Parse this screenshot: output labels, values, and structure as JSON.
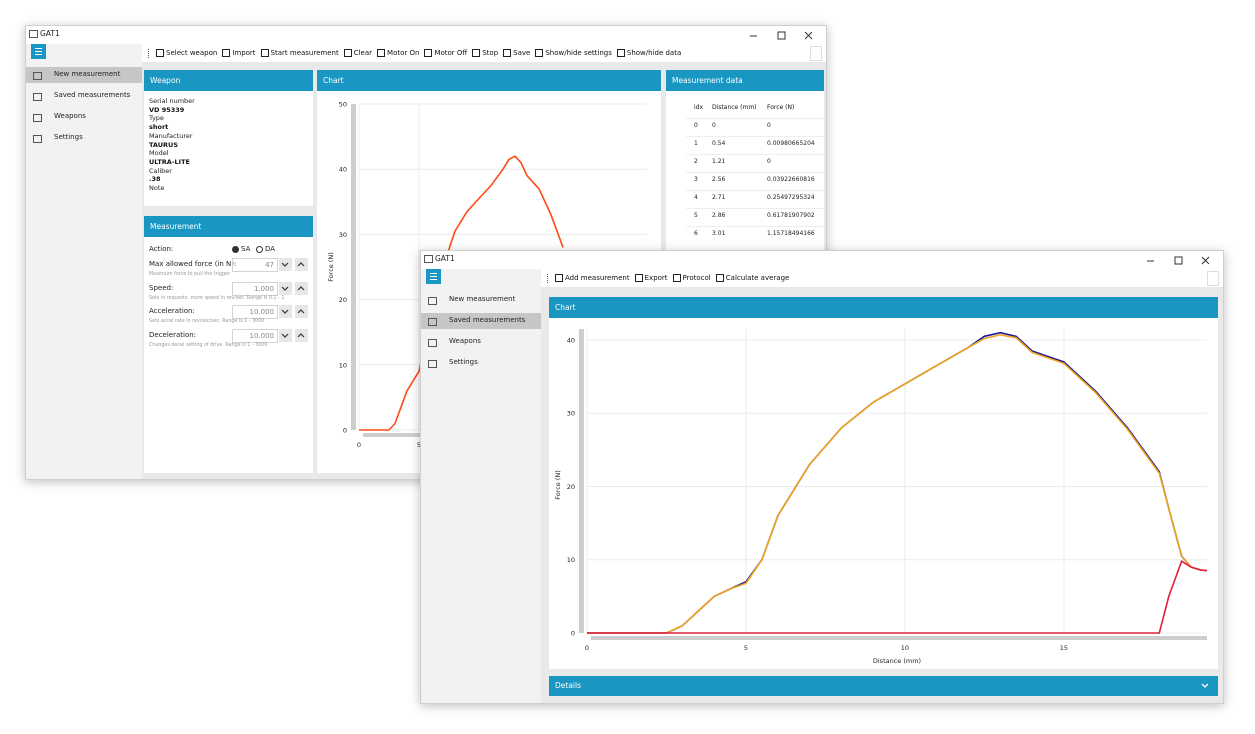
{
  "back_window": {
    "title": "GAT1",
    "menu": [
      "New measurement",
      "Saved measurements",
      "Weapons",
      "Settings"
    ],
    "toolbar": [
      "Select weapon",
      "Import",
      "Start measurement",
      "Clear",
      "Motor On",
      "Motor Off",
      "Stop",
      "Save",
      "Show/hide settings",
      "Show/hide data"
    ],
    "weapon": {
      "header": "Weapon",
      "fields": [
        {
          "label": "Serial number",
          "value": "VD 95339"
        },
        {
          "label": "Type",
          "value": "short"
        },
        {
          "label": "Manufacturer",
          "value": "TAURUS"
        },
        {
          "label": "Model",
          "value": "ULTRA-LITE"
        },
        {
          "label": "Caliber",
          "value": ".38"
        }
      ],
      "note_label": "Note"
    },
    "measurement": {
      "header": "Measurement",
      "action_label": "Action:",
      "options": [
        "SA",
        "DA"
      ],
      "fields": [
        {
          "label": "Max allowed force (in N):",
          "value": 47,
          "hint": "Maximum force to pull the trigger."
        },
        {
          "label": "Speed:",
          "value": "1.000",
          "hint": "Sets in requests. more speed in rev/sec. Range is 0.1 - 1"
        },
        {
          "label": "Acceleration:",
          "value": "10.000",
          "hint": "Sets accel rate in rev/sec/sec. Range is 1 - 3000"
        },
        {
          "label": "Deceleration:",
          "value": "10.000",
          "hint": "Changes decel setting of drive. Range is 1 - 3000"
        }
      ]
    },
    "chart": {
      "header": "Chart",
      "type": "line",
      "y_label": "Force (N)",
      "xlim": [
        0,
        24
      ],
      "xticks": [
        0,
        5
      ],
      "ylim": [
        0,
        50
      ],
      "yticks": [
        0,
        10,
        20,
        30,
        40,
        50
      ],
      "grid": true,
      "x": [
        0,
        2.5,
        3,
        3.5,
        4,
        4.5,
        5,
        5.5,
        6,
        7,
        8,
        9,
        10,
        11,
        12,
        12.5,
        13,
        13.5,
        14,
        15,
        16,
        17
      ],
      "series": [
        {
          "color": "#ff4a14",
          "values": [
            0,
            0,
            1,
            3.5,
            6,
            7.5,
            9,
            13,
            18,
            25,
            30.5,
            33.5,
            35.5,
            37.5,
            40,
            41.5,
            42,
            41,
            39,
            37,
            33,
            28
          ]
        }
      ]
    },
    "data_table": {
      "header": "Measurement data",
      "columns": [
        "idx",
        "Distance (mm)",
        "Force (N)"
      ],
      "rows": [
        [
          0,
          0,
          0
        ],
        [
          1,
          0.54,
          "0.00980665204"
        ],
        [
          2,
          1.21,
          0
        ],
        [
          3,
          2.56,
          "0.03922660816"
        ],
        [
          4,
          2.71,
          "0.25497295324"
        ],
        [
          5,
          2.86,
          "0.61781907902"
        ],
        [
          6,
          3.01,
          "1.15718494166"
        ]
      ]
    }
  },
  "front_window": {
    "title": "GAT1",
    "menu": [
      "New measurement",
      "Saved measurements",
      "Weapons",
      "Settings"
    ],
    "toolbar": [
      "Add measurement",
      "Export",
      "Protocol",
      "Calculate average"
    ],
    "chart": {
      "header": "Chart",
      "type": "line",
      "x_label": "Distance (mm)",
      "y_label": "Force (N)",
      "xlim": [
        0,
        19.5
      ],
      "xticks": [
        0,
        5,
        10,
        15
      ],
      "ylim": [
        0,
        41.5
      ],
      "yticks": [
        0,
        10,
        20,
        30,
        40
      ],
      "grid": true,
      "x": [
        0,
        2.5,
        3,
        3.5,
        4,
        4.5,
        5,
        5.5,
        6,
        7,
        8,
        9,
        10,
        11,
        12,
        12.5,
        13,
        13.5,
        14,
        15,
        16,
        17,
        18,
        18.3,
        18.7,
        19,
        19.3,
        19.5
      ],
      "series": [
        {
          "color": "#1c1c9c",
          "values": [
            0,
            0,
            1,
            3,
            5,
            6,
            7,
            10,
            16,
            23,
            28,
            31.5,
            34,
            36.5,
            39,
            40.5,
            41,
            40.5,
            38.5,
            37,
            33,
            28,
            22,
            17,
            10.5,
            9,
            8.6,
            8.5
          ]
        },
        {
          "color": "#f2a51a",
          "values": [
            0,
            0,
            1,
            3,
            5,
            6,
            6.8,
            10,
            16,
            23,
            28,
            31.5,
            34,
            36.5,
            39,
            40.2,
            40.7,
            40.3,
            38.3,
            36.8,
            32.8,
            27.8,
            21.8,
            17,
            10.5,
            9,
            8.6,
            8.5
          ]
        },
        {
          "color": "#e0203a",
          "values": [
            0,
            0,
            0,
            0,
            0,
            0,
            0,
            0,
            0,
            0,
            0,
            0,
            0,
            0,
            0,
            0,
            0,
            0,
            0,
            0,
            0,
            0,
            0,
            5,
            9.8,
            9,
            8.6,
            8.5
          ]
        }
      ]
    },
    "details": "Details"
  }
}
